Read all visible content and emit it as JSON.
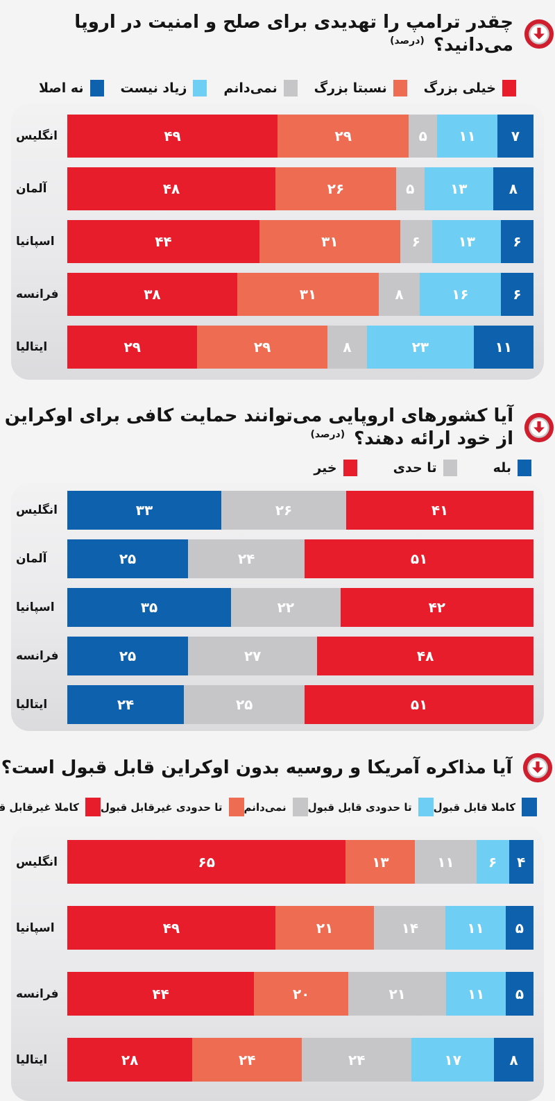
{
  "page": {
    "background": "#f4f4f5",
    "panel_gradient_top": "#f2f2f3",
    "panel_gradient_bottom": "#dbdbde",
    "icon": "red-circle-down-arrow-icon",
    "icon_color": "#cf1f2e"
  },
  "colors": {
    "red": "#e71d2c",
    "salmon": "#ee6c51",
    "gray": "#c6c6c8",
    "light_blue": "#6fcef3",
    "dark_blue": "#0e61ad",
    "text": "#141414",
    "value_text": "#ffffff"
  },
  "chart_data": [
    {
      "type": "bar",
      "stacked": true,
      "orientation": "horizontal",
      "title": "چقدر ترامپ را تهدیدی برای صلح و امنیت در اروپا می‌دانید؟",
      "title_suffix": "(درصد)",
      "legend_position": "top-spread-rtl",
      "legend": [
        {
          "label": "خیلی بزرگ",
          "color": "#e71d2c"
        },
        {
          "label": "نسبتا بزرگ",
          "color": "#ee6c51"
        },
        {
          "label": "نمی‌دانم",
          "color": "#c6c6c8"
        },
        {
          "label": "زیاد نیست",
          "color": "#6fcef3"
        },
        {
          "label": "نه اصلا",
          "color": "#0e61ad"
        }
      ],
      "categories": [
        "انگلیس",
        "آلمان",
        "اسپانیا",
        "فرانسه",
        "ایتالیا"
      ],
      "series": [
        {
          "name": "خیلی بزرگ",
          "color": "#e71d2c",
          "values": [
            49,
            48,
            44,
            38,
            29
          ],
          "display": [
            "۴۹",
            "۴۸",
            "۴۴",
            "۳۸",
            "۲۹"
          ]
        },
        {
          "name": "نسبتا بزرگ",
          "color": "#ee6c51",
          "values": [
            29,
            26,
            31,
            31,
            29
          ],
          "display": [
            "۲۹",
            "۲۶",
            "۳۱",
            "۳۱",
            "۲۹"
          ]
        },
        {
          "name": "نمی‌دانم",
          "color": "#c6c6c8",
          "values": [
            5,
            5,
            6,
            8,
            8
          ],
          "display": [
            "۵",
            "۵",
            "۶",
            "۸",
            "۸"
          ]
        },
        {
          "name": "زیاد نیست",
          "color": "#6fcef3",
          "values": [
            11,
            13,
            13,
            16,
            23
          ],
          "display": [
            "۱۱",
            "۱۳",
            "۱۳",
            "۱۶",
            "۲۳"
          ]
        },
        {
          "name": "نه اصلا",
          "color": "#0e61ad",
          "values": [
            7,
            8,
            6,
            6,
            11
          ],
          "display": [
            "۷",
            "۸",
            "۶",
            "۶",
            "۱۱"
          ]
        }
      ],
      "xlim": [
        0,
        100
      ]
    },
    {
      "type": "bar",
      "stacked": true,
      "orientation": "horizontal",
      "title": "آیا کشورهای اروپایی می‌توانند حمایت کافی برای اوکراین از خود ارائه دهند؟",
      "title_suffix": "(درصد)",
      "legend_position": "top-right-rtl",
      "legend": [
        {
          "label": "بله",
          "color": "#0e61ad"
        },
        {
          "label": "تا حدی",
          "color": "#c6c6c8"
        },
        {
          "label": "خیر",
          "color": "#e71d2c"
        }
      ],
      "categories": [
        "انگلیس",
        "آلمان",
        "اسپانیا",
        "فرانسه",
        "ایتالیا"
      ],
      "series": [
        {
          "name": "بله",
          "color": "#0e61ad",
          "values": [
            33,
            25,
            35,
            25,
            24
          ],
          "display": [
            "۳۳",
            "۲۵",
            "۳۵",
            "۲۵",
            "۲۴"
          ]
        },
        {
          "name": "تا حدی",
          "color": "#c6c6c8",
          "values": [
            26,
            24,
            22,
            27,
            25
          ],
          "display": [
            "۲۶",
            "۲۴",
            "۲۲",
            "۲۷",
            "۲۵"
          ]
        },
        {
          "name": "خیر",
          "color": "#e71d2c",
          "values": [
            41,
            51,
            42,
            48,
            51
          ],
          "display": [
            "۴۱",
            "۵۱",
            "۴۲",
            "۴۸",
            "۵۱"
          ]
        }
      ],
      "xlim": [
        0,
        100
      ]
    },
    {
      "type": "bar",
      "stacked": true,
      "orientation": "horizontal",
      "title": "آیا مذاکره آمریکا و روسیه بدون اوکراین قابل قبول است؟",
      "legend_position": "top-spread-rtl",
      "legend": [
        {
          "label": "کاملا قابل قبول",
          "color": "#0e61ad"
        },
        {
          "label": "تا حدودی قابل قبول",
          "color": "#6fcef3"
        },
        {
          "label": "نمی‌دانم",
          "color": "#c6c6c8"
        },
        {
          "label": "تا حدودی غیرقابل قبول",
          "color": "#ee6c51"
        },
        {
          "label": "کاملا غیرقابل قبول",
          "color": "#e71d2c"
        }
      ],
      "categories": [
        "انگلیس",
        "اسپانیا",
        "فرانسه",
        "ایتالیا"
      ],
      "series": [
        {
          "name": "کاملا غیرقابل قبول",
          "color": "#e71d2c",
          "values": [
            65,
            49,
            44,
            28
          ],
          "display": [
            "۶۵",
            "۴۹",
            "۴۴",
            "۲۸"
          ]
        },
        {
          "name": "تا حدودی غیرقابل قبول",
          "color": "#ee6c51",
          "values": [
            13,
            21,
            20,
            24
          ],
          "display": [
            "۱۳",
            "۲۱",
            "۲۰",
            "۲۴"
          ]
        },
        {
          "name": "نمی‌دانم",
          "color": "#c6c6c8",
          "values": [
            11,
            14,
            21,
            24
          ],
          "display": [
            "۱۱",
            "۱۴",
            "۲۱",
            "۲۴"
          ]
        },
        {
          "name": "تا حدودی قابل قبول",
          "color": "#6fcef3",
          "values": [
            6,
            11,
            11,
            17
          ],
          "display": [
            "۶",
            "۱۱",
            "۱۱",
            "۱۷"
          ]
        },
        {
          "name": "کاملا قابل قبول",
          "color": "#0e61ad",
          "values": [
            4,
            5,
            5,
            8
          ],
          "display": [
            "۴",
            "۵",
            "۵",
            "۸"
          ]
        }
      ],
      "xlim": [
        0,
        100
      ]
    }
  ]
}
